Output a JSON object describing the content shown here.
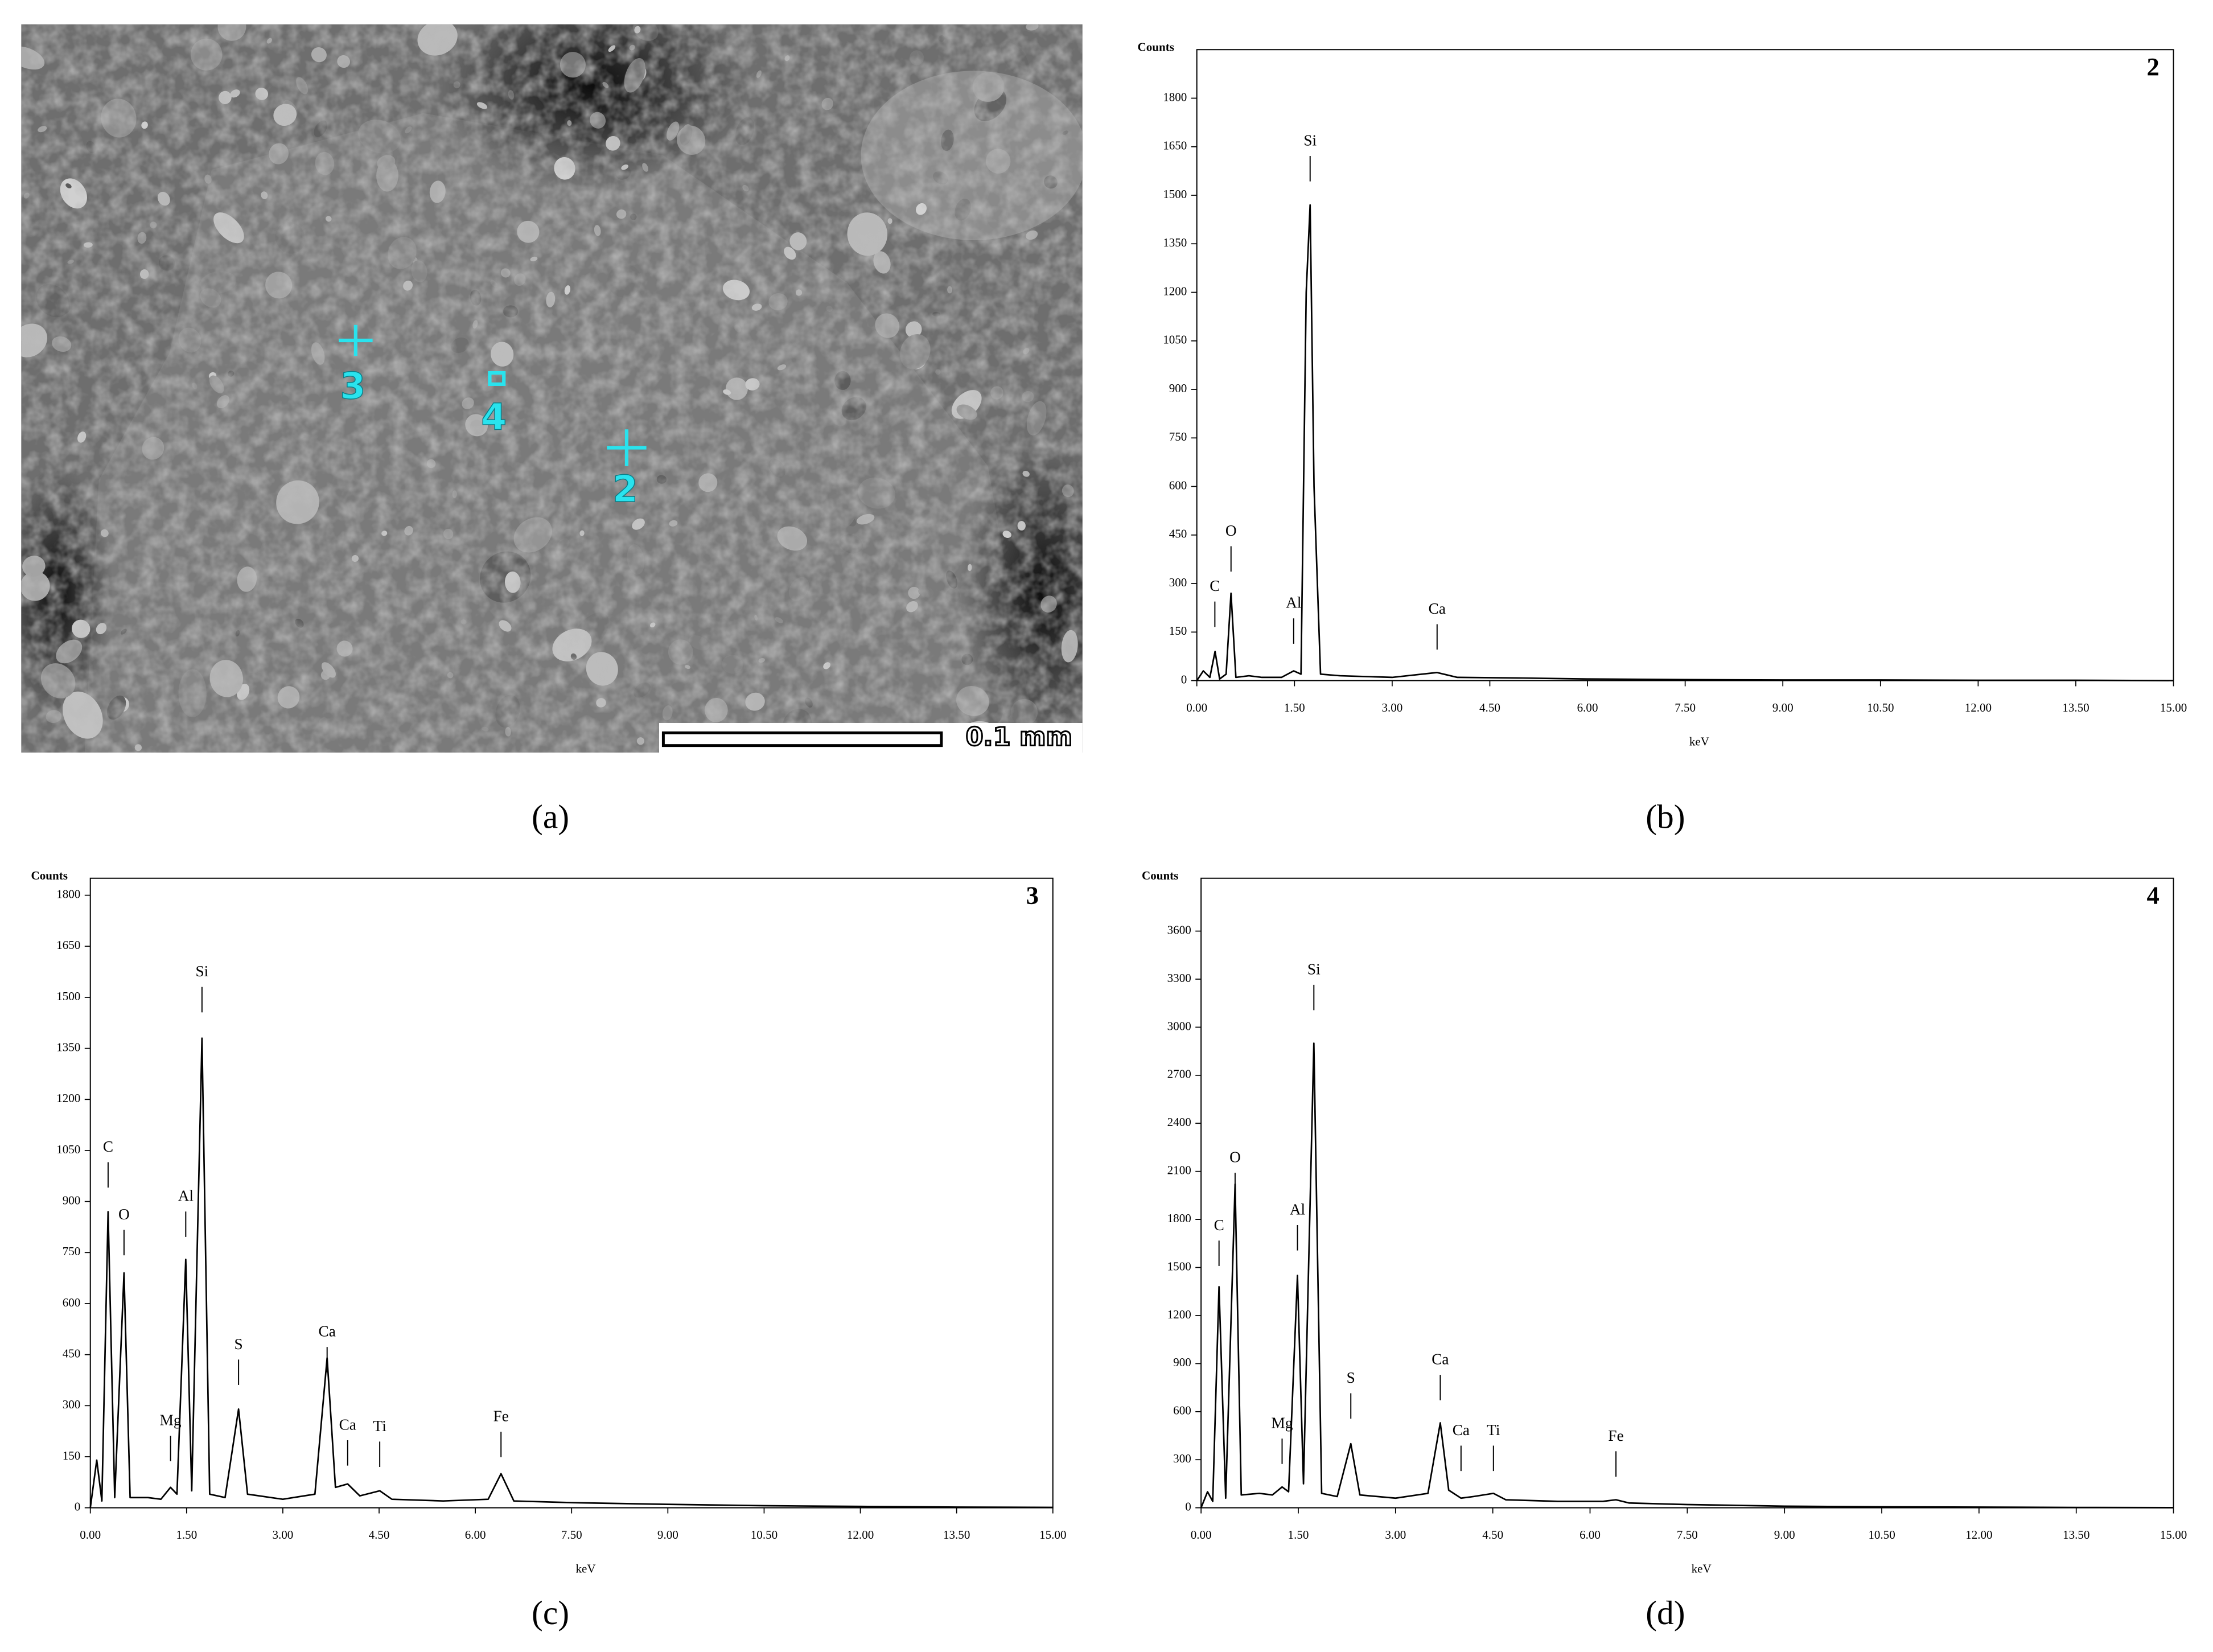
{
  "micrograph": {
    "caption": "(a)",
    "markers": [
      "3",
      "4",
      "2"
    ],
    "scale_label": "0.1 mm"
  },
  "chart_data": [
    {
      "type": "line",
      "caption": "(b)",
      "panel_label": "2",
      "y_label": "Counts",
      "x_label": "keV",
      "x": [
        0,
        0.1,
        0.2,
        0.28,
        0.35,
        0.45,
        0.525,
        0.6,
        0.8,
        1.0,
        1.3,
        1.487,
        1.6,
        1.68,
        1.74,
        1.8,
        1.9,
        2.2,
        3.0,
        3.69,
        4.0,
        5,
        6,
        7.5,
        9,
        10.5,
        12,
        13.5,
        15
      ],
      "series": [
        {
          "color": "#000000",
          "values": [
            0,
            30,
            10,
            90,
            5,
            20,
            270,
            10,
            15,
            10,
            10,
            30,
            20,
            1200,
            1470,
            600,
            20,
            15,
            10,
            25,
            10,
            8,
            5,
            3,
            2,
            2,
            1,
            1,
            0
          ]
        }
      ],
      "xlim": [
        0,
        15
      ],
      "xticks": [
        {
          "value": 0,
          "label": "0.00"
        },
        {
          "value": 1.5,
          "label": "1.50"
        },
        {
          "value": 3,
          "label": "3.00"
        },
        {
          "value": 4.5,
          "label": "4.50"
        },
        {
          "value": 6,
          "label": "6.00"
        },
        {
          "value": 7.5,
          "label": "7.50"
        },
        {
          "value": 9,
          "label": "9.00"
        },
        {
          "value": 10.5,
          "label": "10.50"
        },
        {
          "value": 12,
          "label": "12.00"
        },
        {
          "value": 13.5,
          "label": "13.50"
        },
        {
          "value": 15,
          "label": "15.00"
        }
      ],
      "ylim": [
        0,
        1950
      ],
      "yticks": [
        0,
        150,
        300,
        450,
        600,
        750,
        900,
        1050,
        1200,
        1350,
        1500,
        1650,
        1800
      ],
      "annotations": [
        {
          "label": "C",
          "x": 0.277,
          "y": 288
        },
        {
          "label": "O",
          "x": 0.525,
          "y": 459
        },
        {
          "label": "Al",
          "x": 1.487,
          "y": 236
        },
        {
          "label": "Si",
          "x": 1.74,
          "y": 1665
        },
        {
          "label": "Ca",
          "x": 3.69,
          "y": 218
        }
      ]
    },
    {
      "type": "line",
      "caption": "(c)",
      "panel_label": "3",
      "y_label": "Counts",
      "x_label": "keV",
      "x": [
        0,
        0.1,
        0.18,
        0.277,
        0.38,
        0.525,
        0.62,
        0.9,
        1.1,
        1.25,
        1.35,
        1.487,
        1.58,
        1.74,
        1.86,
        2.1,
        2.31,
        2.45,
        3.0,
        3.5,
        3.69,
        3.82,
        4.01,
        4.2,
        4.51,
        4.7,
        5.5,
        6.2,
        6.4,
        6.6,
        7.5,
        9,
        10.5,
        12,
        13.5,
        15
      ],
      "series": [
        {
          "color": "#000000",
          "values": [
            0,
            140,
            20,
            870,
            30,
            690,
            30,
            30,
            25,
            60,
            40,
            730,
            50,
            1380,
            40,
            30,
            290,
            40,
            25,
            40,
            440,
            60,
            70,
            35,
            50,
            25,
            20,
            25,
            100,
            20,
            15,
            10,
            6,
            4,
            2,
            1
          ]
        }
      ],
      "xlim": [
        0,
        15
      ],
      "xticks": [
        {
          "value": 0,
          "label": "0.00"
        },
        {
          "value": 1.5,
          "label": "1.50"
        },
        {
          "value": 3,
          "label": "3.00"
        },
        {
          "value": 4.5,
          "label": "4.50"
        },
        {
          "value": 6,
          "label": "6.00"
        },
        {
          "value": 7.5,
          "label": "7.50"
        },
        {
          "value": 9,
          "label": "9.00"
        },
        {
          "value": 10.5,
          "label": "10.50"
        },
        {
          "value": 12,
          "label": "12.00"
        },
        {
          "value": 13.5,
          "label": "13.50"
        },
        {
          "value": 15,
          "label": "15.00"
        }
      ],
      "ylim": [
        0,
        1850
      ],
      "yticks": [
        0,
        150,
        300,
        450,
        600,
        750,
        900,
        1050,
        1200,
        1350,
        1500,
        1650,
        1800
      ],
      "annotations": [
        {
          "label": "C",
          "x": 0.277,
          "y": 1057
        },
        {
          "label": "O",
          "x": 0.525,
          "y": 858
        },
        {
          "label": "Mg",
          "x": 1.25,
          "y": 253
        },
        {
          "label": "Al",
          "x": 1.487,
          "y": 912
        },
        {
          "label": "Si",
          "x": 1.74,
          "y": 1572
        },
        {
          "label": "S",
          "x": 2.31,
          "y": 477
        },
        {
          "label": "Ca",
          "x": 3.69,
          "y": 514
        },
        {
          "label": "Ca",
          "x": 4.01,
          "y": 240
        },
        {
          "label": "Ti",
          "x": 4.51,
          "y": 236
        },
        {
          "label": "Fe",
          "x": 6.4,
          "y": 265
        }
      ]
    },
    {
      "type": "line",
      "caption": "(d)",
      "panel_label": "4",
      "y_label": "Counts",
      "x_label": "keV",
      "x": [
        0,
        0.1,
        0.18,
        0.277,
        0.38,
        0.525,
        0.62,
        0.9,
        1.1,
        1.25,
        1.35,
        1.487,
        1.58,
        1.74,
        1.86,
        2.1,
        2.31,
        2.45,
        3.0,
        3.5,
        3.69,
        3.82,
        4.01,
        4.2,
        4.51,
        4.7,
        5.5,
        6.2,
        6.4,
        6.6,
        7.5,
        9,
        10.5,
        12,
        13.5,
        15
      ],
      "series": [
        {
          "color": "#000000",
          "values": [
            0,
            100,
            40,
            1380,
            60,
            2020,
            80,
            90,
            80,
            130,
            100,
            1450,
            150,
            2900,
            90,
            70,
            400,
            80,
            60,
            90,
            530,
            110,
            60,
            70,
            90,
            50,
            40,
            40,
            50,
            30,
            20,
            10,
            6,
            4,
            2,
            1
          ]
        }
      ],
      "xlim": [
        0,
        15
      ],
      "xticks": [
        {
          "value": 0,
          "label": "0.00"
        },
        {
          "value": 1.5,
          "label": "1.50"
        },
        {
          "value": 3,
          "label": "3.00"
        },
        {
          "value": 4.5,
          "label": "4.50"
        },
        {
          "value": 6,
          "label": "6.00"
        },
        {
          "value": 7.5,
          "label": "7.50"
        },
        {
          "value": 9,
          "label": "9.00"
        },
        {
          "value": 10.5,
          "label": "10.50"
        },
        {
          "value": 12,
          "label": "12.00"
        },
        {
          "value": 13.5,
          "label": "13.50"
        },
        {
          "value": 15,
          "label": "15.00"
        }
      ],
      "ylim": [
        0,
        3930
      ],
      "yticks": [
        0,
        300,
        600,
        900,
        1200,
        1500,
        1800,
        2100,
        2400,
        2700,
        3000,
        3300,
        3600
      ],
      "annotations": [
        {
          "label": "C",
          "x": 0.277,
          "y": 1756
        },
        {
          "label": "O",
          "x": 0.525,
          "y": 2179
        },
        {
          "label": "Mg",
          "x": 1.25,
          "y": 520
        },
        {
          "label": "Al",
          "x": 1.487,
          "y": 1853
        },
        {
          "label": "Si",
          "x": 1.74,
          "y": 3353
        },
        {
          "label": "S",
          "x": 2.31,
          "y": 803
        },
        {
          "label": "Ca",
          "x": 3.69,
          "y": 918
        },
        {
          "label": "Ca",
          "x": 4.01,
          "y": 476
        },
        {
          "label": "Ti",
          "x": 4.51,
          "y": 476
        },
        {
          "label": "Fe",
          "x": 6.4,
          "y": 441
        }
      ]
    }
  ]
}
